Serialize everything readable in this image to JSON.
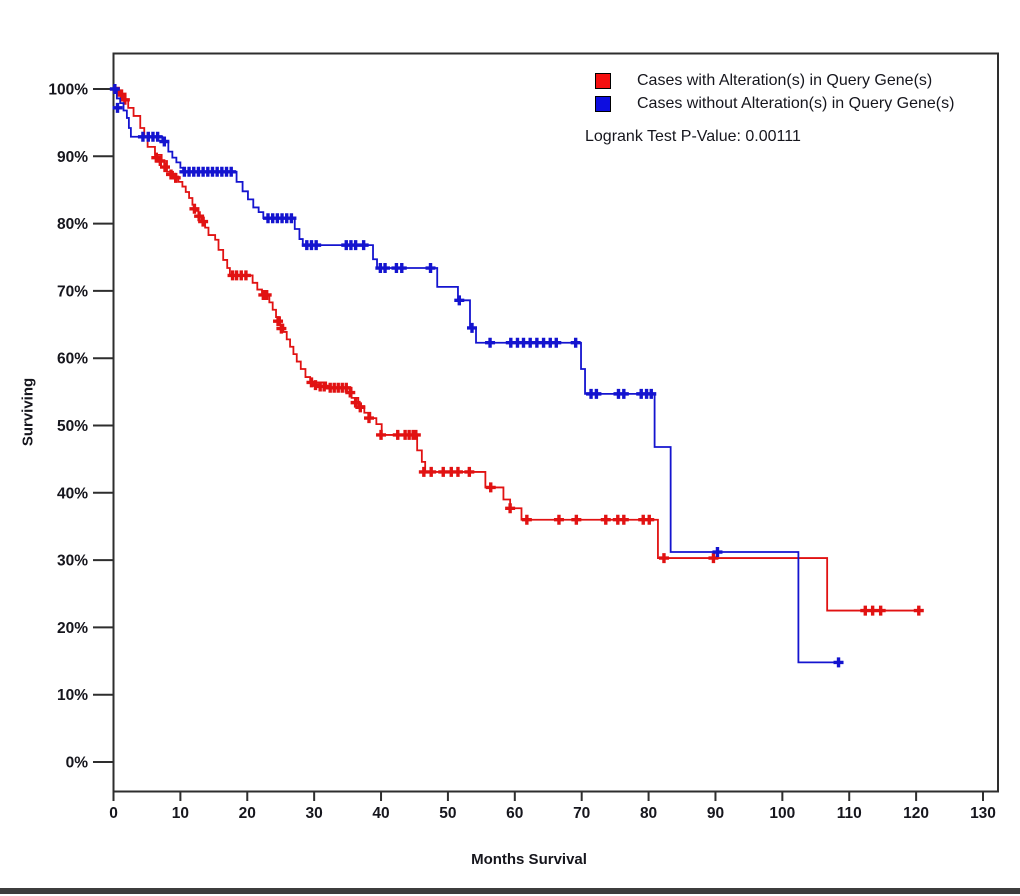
{
  "page": {
    "background": "#ffffff"
  },
  "chart_data": {
    "type": "line",
    "variant": "kaplan-meier-survival-step",
    "title": "",
    "xlabel": "Months Survival",
    "ylabel": "Surviving",
    "xlim": [
      0,
      130
    ],
    "ylim": [
      0,
      100
    ],
    "grid": false,
    "legend_position": "top-right-inside",
    "pvalue_label": "Logrank Test P-Value: 0.00111",
    "axis_color": "#2e2e2e",
    "text_color": "#16161d",
    "x_ticks": [
      {
        "value": 0,
        "label": "0"
      },
      {
        "value": 10,
        "label": "10"
      },
      {
        "value": 20,
        "label": "20"
      },
      {
        "value": 30,
        "label": "30"
      },
      {
        "value": 40,
        "label": "40"
      },
      {
        "value": 50,
        "label": "50"
      },
      {
        "value": 60,
        "label": "60"
      },
      {
        "value": 70,
        "label": "70"
      },
      {
        "value": 80,
        "label": "80"
      },
      {
        "value": 90,
        "label": "90"
      },
      {
        "value": 100,
        "label": "100"
      },
      {
        "value": 110,
        "label": "110"
      },
      {
        "value": 120,
        "label": "120"
      },
      {
        "value": 130,
        "label": "130"
      }
    ],
    "y_ticks": [
      {
        "value": 0,
        "label": "0%"
      },
      {
        "value": 10,
        "label": "10%"
      },
      {
        "value": 20,
        "label": "20%"
      },
      {
        "value": 30,
        "label": "30%"
      },
      {
        "value": 40,
        "label": "40%"
      },
      {
        "value": 50,
        "label": "50%"
      },
      {
        "value": 60,
        "label": "60%"
      },
      {
        "value": 70,
        "label": "70%"
      },
      {
        "value": 80,
        "label": "80%"
      },
      {
        "value": 90,
        "label": "90%"
      },
      {
        "value": 100,
        "label": "100%"
      }
    ],
    "series": [
      {
        "name": "Cases with Alteration(s) in Query Gene(s)",
        "color": "#e11212",
        "swatch_color": "#f50f0f",
        "steps": [
          [
            0,
            100
          ],
          [
            0.8,
            99.2
          ],
          [
            1.5,
            98.4
          ],
          [
            2.2,
            97.2
          ],
          [
            3,
            96
          ],
          [
            4,
            94.2
          ],
          [
            4.6,
            92.8
          ],
          [
            5.1,
            91.4
          ],
          [
            6.2,
            90.2
          ],
          [
            7.2,
            89.3
          ],
          [
            8,
            87.7
          ],
          [
            8.9,
            87
          ],
          [
            9.7,
            86.2
          ],
          [
            10.3,
            85.5
          ],
          [
            10.8,
            84.7
          ],
          [
            11.3,
            83.8
          ],
          [
            11.8,
            82.8
          ],
          [
            12.2,
            81.9
          ],
          [
            12.7,
            81.1
          ],
          [
            13.2,
            80.3
          ],
          [
            13.7,
            79.4
          ],
          [
            14.2,
            78.3
          ],
          [
            15.2,
            77.6
          ],
          [
            15.7,
            76.1
          ],
          [
            16.4,
            74.6
          ],
          [
            17,
            73.4
          ],
          [
            17.4,
            72.3
          ],
          [
            20.8,
            71.2
          ],
          [
            21.5,
            70.2
          ],
          [
            22.2,
            69.4
          ],
          [
            23.3,
            68.3
          ],
          [
            23.8,
            67.2
          ],
          [
            24.3,
            66.1
          ],
          [
            24.9,
            65
          ],
          [
            25.4,
            63.9
          ],
          [
            25.9,
            62.8
          ],
          [
            26.4,
            61.7
          ],
          [
            26.9,
            60.6
          ],
          [
            27.4,
            59.5
          ],
          [
            28,
            58.4
          ],
          [
            28.7,
            57.2
          ],
          [
            29.4,
            56.4
          ],
          [
            31.8,
            55.6
          ],
          [
            35.6,
            54.1
          ],
          [
            36.6,
            52.9
          ],
          [
            37.5,
            51.9
          ],
          [
            38.4,
            51.1
          ],
          [
            39.3,
            50.2
          ],
          [
            40.1,
            48.6
          ],
          [
            45.4,
            46.3
          ],
          [
            46.1,
            44.6
          ],
          [
            46.6,
            43.1
          ],
          [
            55.6,
            40.8
          ],
          [
            58.3,
            39
          ],
          [
            59.3,
            37.7
          ],
          [
            61,
            36
          ],
          [
            81.4,
            30.3
          ],
          [
            106.7,
            22.5
          ],
          [
            120.7,
            22.5
          ]
        ],
        "censors": [
          [
            0.7,
            99.6
          ],
          [
            1.2,
            99.2
          ],
          [
            1.7,
            98.4
          ],
          [
            6.4,
            89.8
          ],
          [
            7,
            89.3
          ],
          [
            7.7,
            88.4
          ],
          [
            8.6,
            87.3
          ],
          [
            9.3,
            86.8
          ],
          [
            12.1,
            82.2
          ],
          [
            12.8,
            81.1
          ],
          [
            13.4,
            80.3
          ],
          [
            17.8,
            72.3
          ],
          [
            18.4,
            72.3
          ],
          [
            19.1,
            72.3
          ],
          [
            19.8,
            72.3
          ],
          [
            22.4,
            69.4
          ],
          [
            22.9,
            69.4
          ],
          [
            24.6,
            65.5
          ],
          [
            25.1,
            64.4
          ],
          [
            29.6,
            56.4
          ],
          [
            30.2,
            56
          ],
          [
            30.9,
            55.8
          ],
          [
            31.5,
            55.8
          ],
          [
            32.4,
            55.6
          ],
          [
            33,
            55.6
          ],
          [
            33.6,
            55.6
          ],
          [
            34.2,
            55.6
          ],
          [
            34.8,
            55.6
          ],
          [
            35.4,
            54.9
          ],
          [
            36.2,
            53.4
          ],
          [
            36.9,
            52.7
          ],
          [
            38.2,
            51.1
          ],
          [
            40,
            48.6
          ],
          [
            42.5,
            48.6
          ],
          [
            43.6,
            48.6
          ],
          [
            44.2,
            48.6
          ],
          [
            44.8,
            48.6
          ],
          [
            45.2,
            48.6
          ],
          [
            46.4,
            43.1
          ],
          [
            47.5,
            43.1
          ],
          [
            49.3,
            43.1
          ],
          [
            50.5,
            43.1
          ],
          [
            51.5,
            43.1
          ],
          [
            53.2,
            43.1
          ],
          [
            56.4,
            40.8
          ],
          [
            59.3,
            37.7
          ],
          [
            61.8,
            36
          ],
          [
            66.6,
            36
          ],
          [
            69.2,
            36
          ],
          [
            73.6,
            36
          ],
          [
            75.4,
            36
          ],
          [
            76.3,
            36
          ],
          [
            79.2,
            36
          ],
          [
            80.1,
            36
          ],
          [
            82.3,
            30.3
          ],
          [
            89.7,
            30.3
          ],
          [
            112.4,
            22.5
          ],
          [
            113.5,
            22.5
          ],
          [
            114.7,
            22.5
          ],
          [
            120.4,
            22.5
          ]
        ]
      },
      {
        "name": "Cases without Alteration(s) in Query Gene(s)",
        "color": "#1414cf",
        "swatch_color": "#0d0de0",
        "steps": [
          [
            0,
            100
          ],
          [
            0.5,
            98.6
          ],
          [
            1,
            97.9
          ],
          [
            1.5,
            96.8
          ],
          [
            2,
            95.7
          ],
          [
            2.3,
            94.2
          ],
          [
            2.6,
            92.9
          ],
          [
            7.3,
            92.2
          ],
          [
            8.2,
            90.7
          ],
          [
            8.8,
            89.8
          ],
          [
            9.4,
            89.1
          ],
          [
            10,
            88.3
          ],
          [
            10.4,
            87.7
          ],
          [
            18.4,
            86.2
          ],
          [
            19.3,
            84.8
          ],
          [
            20.1,
            83.6
          ],
          [
            20.9,
            82.4
          ],
          [
            21.7,
            81.7
          ],
          [
            22.4,
            80.8
          ],
          [
            27.1,
            79.2
          ],
          [
            27.8,
            77.7
          ],
          [
            28.3,
            76.8
          ],
          [
            38.8,
            74.7
          ],
          [
            39.4,
            73.4
          ],
          [
            48.4,
            70.6
          ],
          [
            51.5,
            68.6
          ],
          [
            53.3,
            64.5
          ],
          [
            54.2,
            62.3
          ],
          [
            69.9,
            58.4
          ],
          [
            70.5,
            54.7
          ],
          [
            80.9,
            46.8
          ],
          [
            83.3,
            31.2
          ],
          [
            102.4,
            14.8
          ],
          [
            108.7,
            14.8
          ]
        ],
        "censors": [
          [
            0.2,
            100
          ],
          [
            0.6,
            97.2
          ],
          [
            4.4,
            92.9
          ],
          [
            5.2,
            92.9
          ],
          [
            5.9,
            92.9
          ],
          [
            6.6,
            92.9
          ],
          [
            7.6,
            92.2
          ],
          [
            10.6,
            87.7
          ],
          [
            11.3,
            87.7
          ],
          [
            12,
            87.7
          ],
          [
            12.7,
            87.7
          ],
          [
            13.4,
            87.7
          ],
          [
            14.1,
            87.7
          ],
          [
            14.8,
            87.7
          ],
          [
            15.5,
            87.7
          ],
          [
            16.2,
            87.7
          ],
          [
            16.9,
            87.7
          ],
          [
            17.6,
            87.7
          ],
          [
            23.1,
            80.8
          ],
          [
            23.8,
            80.8
          ],
          [
            24.5,
            80.8
          ],
          [
            25.2,
            80.8
          ],
          [
            25.9,
            80.8
          ],
          [
            26.6,
            80.8
          ],
          [
            28.9,
            76.8
          ],
          [
            29.6,
            76.8
          ],
          [
            30.3,
            76.8
          ],
          [
            34.8,
            76.8
          ],
          [
            35.5,
            76.8
          ],
          [
            36.2,
            76.8
          ],
          [
            37.4,
            76.8
          ],
          [
            39.9,
            73.4
          ],
          [
            40.6,
            73.4
          ],
          [
            42.3,
            73.4
          ],
          [
            43.1,
            73.4
          ],
          [
            47.4,
            73.4
          ],
          [
            51.7,
            68.6
          ],
          [
            53.6,
            64.5
          ],
          [
            56.3,
            62.3
          ],
          [
            59.4,
            62.3
          ],
          [
            60.4,
            62.3
          ],
          [
            61.3,
            62.3
          ],
          [
            62.3,
            62.3
          ],
          [
            63.3,
            62.3
          ],
          [
            64.3,
            62.3
          ],
          [
            65.3,
            62.3
          ],
          [
            66.2,
            62.3
          ],
          [
            69.1,
            62.3
          ],
          [
            71.4,
            54.7
          ],
          [
            72.2,
            54.7
          ],
          [
            75.5,
            54.7
          ],
          [
            76.3,
            54.7
          ],
          [
            78.9,
            54.7
          ],
          [
            79.7,
            54.7
          ],
          [
            80.4,
            54.7
          ],
          [
            90.3,
            31.2
          ],
          [
            108.4,
            14.8
          ]
        ]
      }
    ]
  }
}
